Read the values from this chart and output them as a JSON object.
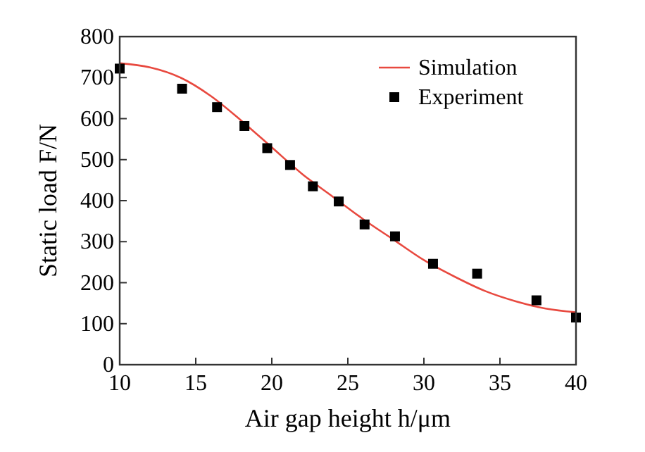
{
  "chart_data": {
    "type": "scatter",
    "xlabel": "Air gap height h/μm",
    "ylabel": "Static load F/N",
    "xlim": [
      10,
      40
    ],
    "ylim": [
      0,
      800
    ],
    "xticks": [
      10,
      15,
      20,
      25,
      30,
      35,
      40
    ],
    "yticks": [
      0,
      100,
      200,
      300,
      400,
      500,
      600,
      700,
      800
    ],
    "legend": "top right",
    "grid": false,
    "series": [
      {
        "name": "Simulation",
        "type": "line",
        "color": "#e8493f",
        "marker": "none",
        "line_style": "solid",
        "x": [
          10,
          12,
          14,
          16,
          18,
          20,
          22,
          24,
          26,
          28,
          30,
          32,
          34,
          36,
          38,
          40
        ],
        "values": [
          735,
          725,
          700,
          655,
          595,
          530,
          465,
          410,
          355,
          305,
          255,
          215,
          180,
          155,
          137,
          128
        ]
      },
      {
        "name": "Experiment",
        "color": "#000000",
        "marker": "square",
        "x": [
          10,
          14.1,
          16.4,
          18.2,
          19.7,
          21.2,
          22.7,
          24.4,
          26.1,
          28.1,
          30.6,
          33.5,
          37.4,
          40
        ],
        "values": [
          722,
          673,
          628,
          582,
          528,
          487,
          435,
          398,
          342,
          313,
          246,
          222,
          157,
          115
        ]
      }
    ]
  }
}
